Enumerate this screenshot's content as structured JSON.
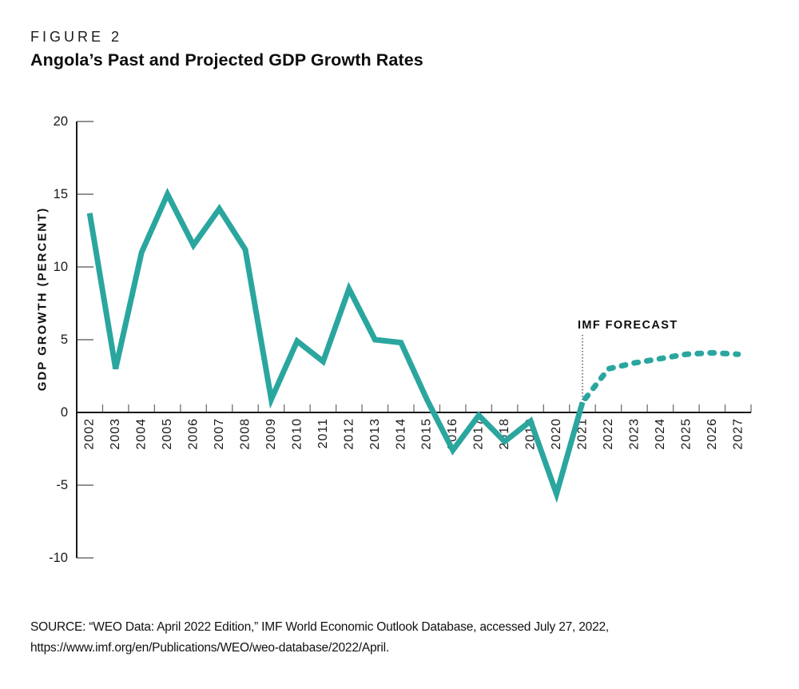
{
  "page": {
    "background": "#ffffff"
  },
  "header": {
    "figure_label": "FIGURE 2",
    "title": "Angola’s Past and Projected GDP Growth Rates"
  },
  "chart_data": {
    "type": "line",
    "title": "Angola’s Past and Projected GDP Growth Rates",
    "xlabel": "",
    "ylabel": "GDP GROWTH (PERCENT)",
    "ylim": [
      -10,
      20
    ],
    "yticks": [
      20,
      15,
      10,
      5,
      0,
      -5,
      -10
    ],
    "grid": false,
    "legend": "none",
    "line_color": "#2aa69f",
    "categories": [
      2002,
      2003,
      2004,
      2005,
      2006,
      2007,
      2008,
      2009,
      2010,
      2011,
      2012,
      2013,
      2014,
      2015,
      2016,
      2017,
      2018,
      2019,
      2020,
      2021,
      2022,
      2023,
      2024,
      2025,
      2026,
      2027
    ],
    "series": [
      {
        "style": "solid",
        "years": [
          2002,
          2003,
          2004,
          2005,
          2006,
          2007,
          2008,
          2009,
          2010,
          2011,
          2012,
          2013,
          2014,
          2015,
          2016,
          2017,
          2018,
          2019,
          2020,
          2021
        ],
        "values": [
          13.7,
          3.0,
          11.0,
          15.0,
          11.5,
          14.0,
          11.2,
          0.9,
          4.9,
          3.5,
          8.5,
          5.0,
          4.8,
          0.9,
          -2.6,
          -0.2,
          -2.0,
          -0.6,
          -5.6,
          0.7
        ]
      },
      {
        "style": "dashed",
        "label": "IMF FORECAST",
        "years": [
          2021,
          2022,
          2023,
          2024,
          2025,
          2026,
          2027
        ],
        "values": [
          0.7,
          3.0,
          3.4,
          3.7,
          4.0,
          4.1,
          4.0
        ]
      }
    ],
    "annotation": {
      "label": "IMF FORECAST",
      "at_year": 2021
    }
  },
  "source": {
    "line1": "SOURCE: “WEO Data: April 2022 Edition,” IMF World Economic Outlook Database, accessed July 27, 2022,",
    "line2": "https://www.imf.org/en/Publications/WEO/weo-database/2022/April."
  }
}
